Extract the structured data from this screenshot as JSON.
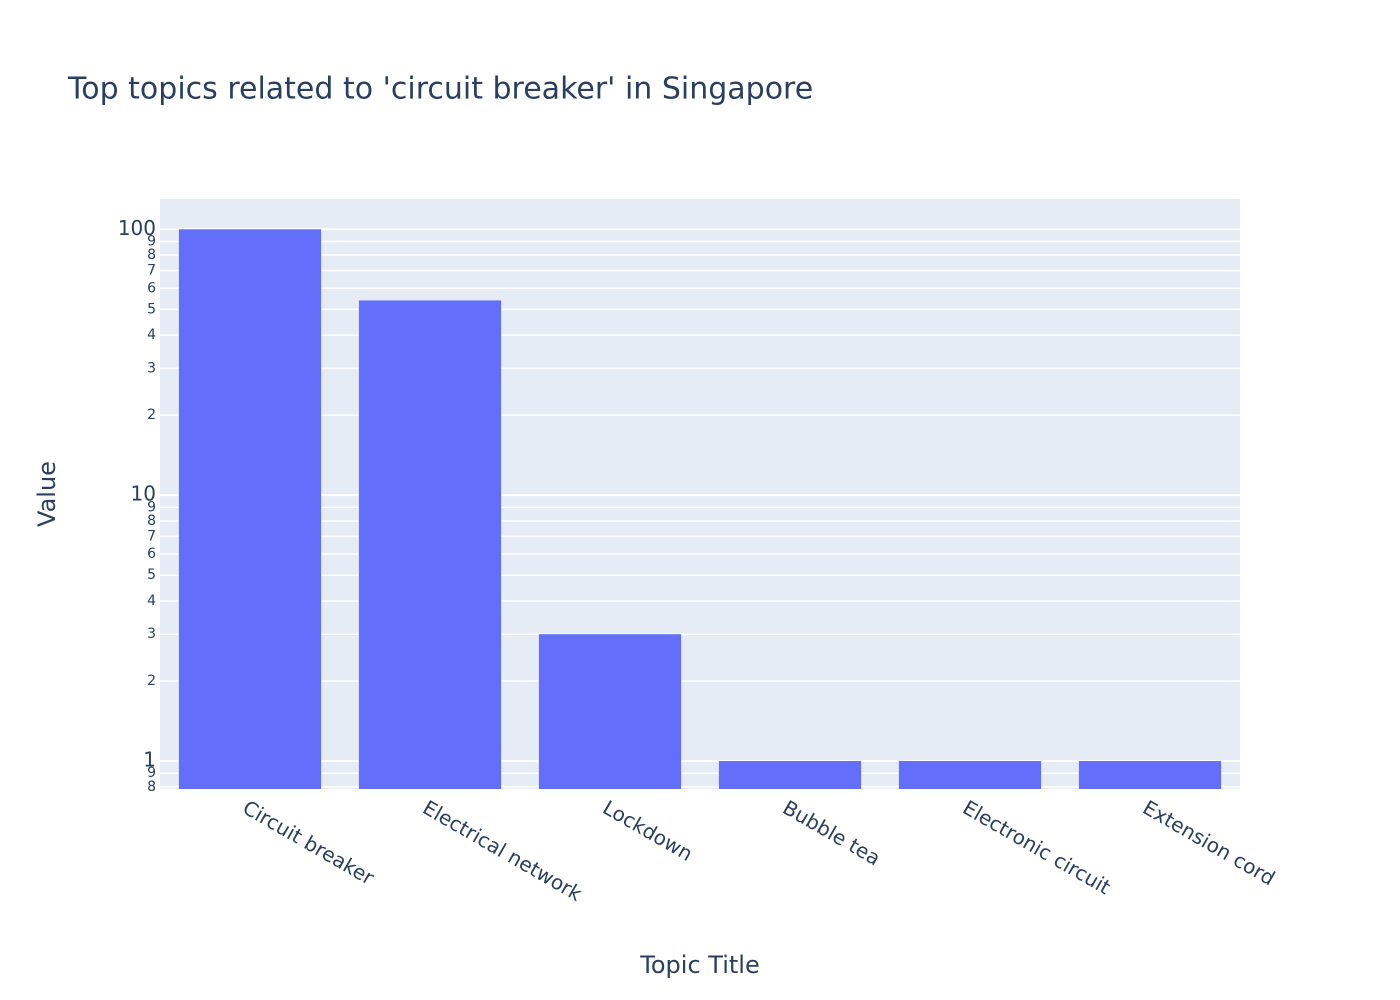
{
  "chart_data": {
    "type": "bar",
    "title": "Top topics related to 'circuit breaker' in Singapore",
    "x_label": "Topic Title",
    "y_label": "Value",
    "categories": [
      "Circuit breaker",
      "Electrical network",
      "Lockdown",
      "Bubble tea",
      "Electronic circuit",
      "Extension cord"
    ],
    "values": [
      100,
      54,
      3,
      1,
      1,
      1
    ],
    "color": "#636efa",
    "log_y": true,
    "grid": true,
    "ylim": [
      0.785,
      130
    ],
    "yticks": [
      {
        "value": 0.8,
        "label": "8"
      },
      {
        "value": 0.9,
        "label": "9"
      },
      1,
      2,
      3,
      4,
      5,
      6,
      7,
      8,
      9,
      10,
      {
        "value": 20,
        "label": "2"
      },
      {
        "value": 30,
        "label": "3"
      },
      {
        "value": 40,
        "label": "4"
      },
      {
        "value": 50,
        "label": "5"
      },
      {
        "value": 60,
        "label": "6"
      },
      {
        "value": 70,
        "label": "7"
      },
      {
        "value": 80,
        "label": "8"
      },
      {
        "value": 90,
        "label": "9"
      },
      100
    ]
  }
}
